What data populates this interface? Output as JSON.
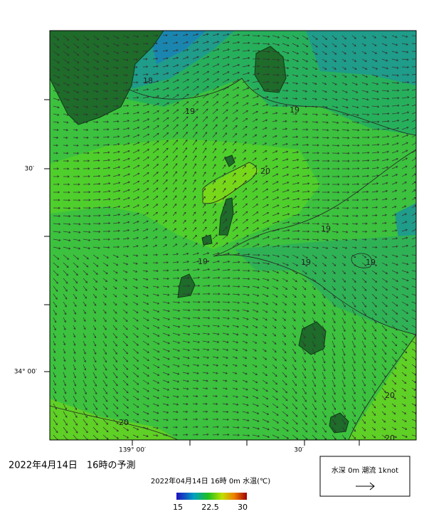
{
  "axes": {
    "left_labels": [
      "30′",
      "34° 00′"
    ],
    "bottom_labels": [
      "139° 00′",
      "30′"
    ]
  },
  "contour_labels": [
    "18",
    "19",
    "19",
    "20",
    "19",
    "19",
    "19",
    "19",
    "20",
    "20",
    "20"
  ],
  "caption": "2022年4月14日　16時の予測",
  "colorbar": {
    "title": "2022年04月14日 16時 0m 水温(℃)",
    "ticks": [
      15,
      22.5,
      30
    ]
  },
  "legend": {
    "label": "水深 0m 潮流 1knot"
  }
}
